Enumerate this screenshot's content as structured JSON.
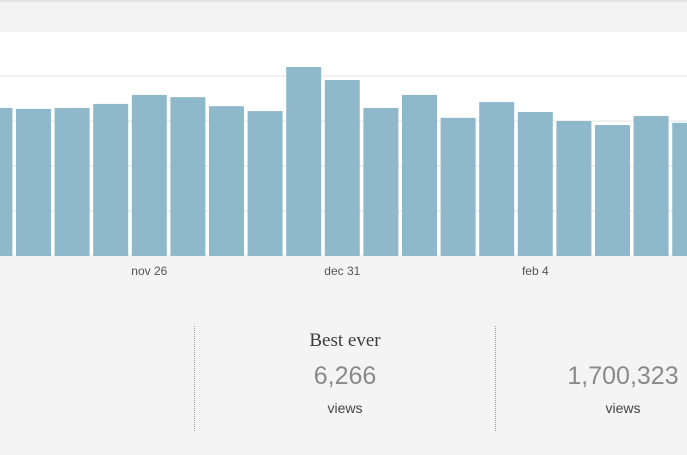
{
  "chart_data": {
    "type": "bar",
    "categories": [
      null,
      null,
      null,
      null,
      "nov 26",
      null,
      null,
      null,
      null,
      "dec 31",
      null,
      null,
      null,
      null,
      "feb 4",
      null,
      null,
      null,
      null
    ],
    "values": [
      3.29,
      3.27,
      3.29,
      3.38,
      3.58,
      3.53,
      3.33,
      3.22,
      4.2,
      3.91,
      3.29,
      3.58,
      3.07,
      3.42,
      3.2,
      3.0,
      2.91,
      3.11,
      2.96
    ],
    "color": "#8fb8cb",
    "ylim": [
      0,
      5
    ],
    "yticks": [
      0,
      1,
      2,
      3,
      4
    ],
    "grid": true
  },
  "summary": [
    {
      "title": "Best ever",
      "value": "6,266",
      "unit": "views"
    },
    {
      "value": "1,700,323",
      "unit": "views"
    }
  ]
}
